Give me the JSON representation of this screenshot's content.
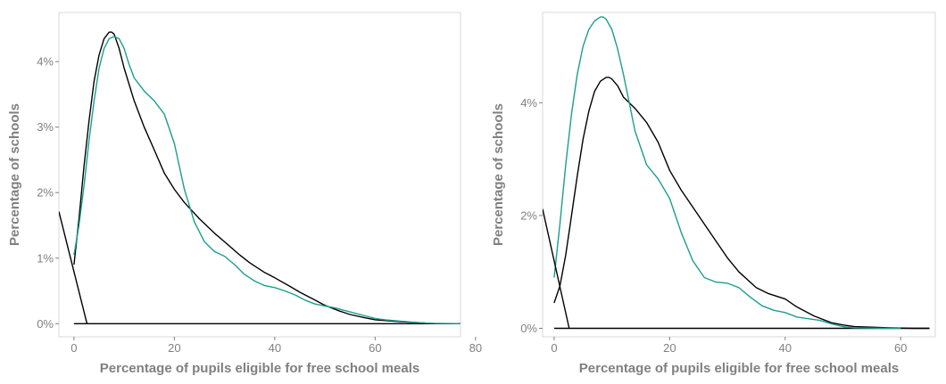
{
  "chart_data": [
    {
      "type": "line",
      "xlabel": "Percentage of pupils eligible for free school meals",
      "ylabel": "Percentage of schools",
      "xlim": [
        -3,
        77
      ],
      "ylim": [
        -0.2,
        4.75
      ],
      "xticks": [
        0,
        20,
        40,
        60,
        80
      ],
      "xtick_labels": [
        "0",
        "20",
        "40",
        "60",
        "80"
      ],
      "yticks": [
        0,
        1,
        2,
        3,
        4
      ],
      "ytick_labels": [
        "0%",
        "1%",
        "2%",
        "3%",
        "4%"
      ],
      "grid": false,
      "legend": "none",
      "series": [
        {
          "color": "#000000",
          "x": [
            0,
            1,
            2,
            3,
            4,
            5,
            6,
            7,
            7.5,
            8,
            9,
            10,
            12,
            14,
            16,
            18,
            20,
            22,
            25,
            28,
            30,
            33,
            35,
            38,
            40,
            43,
            45,
            48,
            50,
            53,
            55,
            58,
            60,
            65,
            70,
            72,
            77
          ],
          "y": [
            0.9,
            1.6,
            2.4,
            3.1,
            3.7,
            4.1,
            4.35,
            4.45,
            4.45,
            4.42,
            4.2,
            3.9,
            3.4,
            3.0,
            2.65,
            2.3,
            2.05,
            1.85,
            1.6,
            1.38,
            1.25,
            1.05,
            0.93,
            0.78,
            0.7,
            0.57,
            0.48,
            0.36,
            0.28,
            0.19,
            0.14,
            0.09,
            0.06,
            0.03,
            0.01,
            0.0,
            0.0
          ]
        },
        {
          "color": "#1a9e8f",
          "x": [
            0,
            1,
            2,
            3,
            4,
            5,
            6,
            7,
            8,
            9,
            10,
            11,
            12,
            14,
            16,
            18,
            20,
            22,
            24,
            26,
            28,
            30,
            32,
            34,
            36,
            38,
            40,
            42,
            44,
            46,
            48,
            50,
            52,
            55,
            58,
            60,
            62,
            65,
            68,
            70,
            72,
            77
          ],
          "y": [
            1.05,
            1.5,
            2.1,
            2.8,
            3.4,
            3.9,
            4.2,
            4.35,
            4.38,
            4.35,
            4.2,
            3.95,
            3.75,
            3.55,
            3.4,
            3.2,
            2.75,
            2.05,
            1.55,
            1.25,
            1.1,
            1.03,
            0.9,
            0.75,
            0.65,
            0.58,
            0.55,
            0.5,
            0.44,
            0.36,
            0.3,
            0.27,
            0.24,
            0.18,
            0.12,
            0.08,
            0.06,
            0.04,
            0.02,
            0.01,
            0.005,
            0.0
          ]
        }
      ]
    },
    {
      "type": "line",
      "xlabel": "Percentage of pupils eligible for free school meals",
      "ylabel": "Percentage of schools",
      "xlim": [
        -2,
        66
      ],
      "ylim": [
        -0.15,
        5.6
      ],
      "xticks": [
        0,
        20,
        40,
        60
      ],
      "xtick_labels": [
        "0",
        "20",
        "40",
        "60"
      ],
      "yticks": [
        0,
        2,
        4
      ],
      "ytick_labels": [
        "0%",
        "2%",
        "4%"
      ],
      "grid": false,
      "legend": "none",
      "series": [
        {
          "color": "#000000",
          "x": [
            0,
            1,
            2,
            3,
            4,
            5,
            6,
            7,
            8,
            9,
            9.5,
            10,
            11,
            12,
            14,
            16,
            18,
            20,
            22,
            25,
            28,
            30,
            32,
            35,
            37,
            40,
            42,
            45,
            48,
            50,
            52,
            55,
            58,
            60,
            62,
            65
          ],
          "y": [
            0.45,
            0.75,
            1.3,
            2.0,
            2.7,
            3.35,
            3.85,
            4.2,
            4.38,
            4.45,
            4.45,
            4.42,
            4.3,
            4.1,
            3.9,
            3.65,
            3.3,
            2.8,
            2.45,
            2.0,
            1.55,
            1.25,
            1.0,
            0.72,
            0.62,
            0.52,
            0.38,
            0.22,
            0.1,
            0.06,
            0.03,
            0.02,
            0.01,
            0.005,
            0.0,
            0.0
          ]
        },
        {
          "color": "#1a9e8f",
          "x": [
            0,
            1,
            2,
            3,
            4,
            5,
            6,
            7,
            8,
            8.5,
            9,
            10,
            11,
            12,
            13,
            14,
            16,
            18,
            20,
            22,
            24,
            26,
            28,
            30,
            32,
            34,
            36,
            38,
            40,
            42,
            44,
            46,
            48,
            50,
            52,
            55,
            58,
            60
          ],
          "y": [
            0.9,
            1.85,
            2.9,
            3.8,
            4.5,
            5.0,
            5.3,
            5.45,
            5.52,
            5.52,
            5.48,
            5.3,
            4.95,
            4.5,
            4.0,
            3.5,
            2.9,
            2.65,
            2.3,
            1.7,
            1.2,
            0.9,
            0.82,
            0.8,
            0.72,
            0.55,
            0.4,
            0.32,
            0.28,
            0.2,
            0.17,
            0.14,
            0.08,
            0.03,
            0.01,
            0.005,
            0.0,
            0.0
          ]
        }
      ]
    }
  ]
}
